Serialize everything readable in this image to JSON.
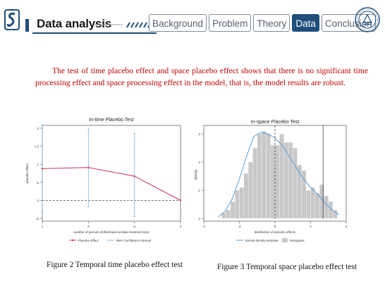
{
  "header": {
    "title": "Data analysis",
    "tabs": [
      {
        "label": "Background",
        "active": false
      },
      {
        "label": "Problem",
        "active": false
      },
      {
        "label": "Theory",
        "active": false
      },
      {
        "label": "Data",
        "active": true
      },
      {
        "label": "Conclusion",
        "active": false
      }
    ],
    "brand_color": "#1f4e79"
  },
  "body": {
    "text": "The test of time placebo effect and space placebo effect shows that there is no significant time processing effect and space processing effect in the model, that is, the model results are robust.",
    "text_color": "#c00000"
  },
  "figures": {
    "time": {
      "caption": "Figure 2 Temporal time placebo effect test"
    },
    "space": {
      "caption": "Figure 3 Temporal space placebo effect test"
    }
  },
  "chart_data": [
    {
      "type": "line",
      "title": "In-time Placebo Test",
      "xlabel": "number of periods shifted back as fake treatment time",
      "ylabel": "placebo effect",
      "x": [
        1,
        2,
        3,
        4
      ],
      "xlim": [
        1,
        4
      ],
      "ylim": [
        -0.5,
        2
      ],
      "x_ticks": [
        "1",
        "2",
        "3",
        "4"
      ],
      "y_ticks": [
        "-.5",
        "0",
        ".5",
        "1",
        "1.5",
        "2"
      ],
      "series": [
        {
          "name": "Placebo Effect",
          "values": [
            0.88,
            0.91,
            0.67,
            0.0
          ],
          "color": "#c8385a"
        }
      ],
      "confidence_intervals": {
        "name": "95% Confidence Interval",
        "color": "#7fb3d8",
        "lower": [
          -0.3,
          -0.18,
          -0.45,
          0.0
        ],
        "upper": [
          2.1,
          2.0,
          1.85,
          0.0
        ]
      },
      "reference_line": {
        "y": 0,
        "style": "dashed"
      },
      "legend": "bottom"
    },
    {
      "type": "histogram",
      "title": "In-space Placebo Test",
      "xlabel": "distribution of placebo effects",
      "ylabel": "density",
      "xlim": [
        -4,
        4
      ],
      "ylim": [
        0,
        0.32
      ],
      "x_ticks": [
        "-4",
        "-2",
        "0",
        "2",
        "4"
      ],
      "y_ticks": [
        "0",
        ".1",
        ".2",
        ".3"
      ],
      "bin_width": 0.25,
      "bin_starts": [
        -3.0,
        -2.75,
        -2.5,
        -2.25,
        -2.0,
        -1.75,
        -1.5,
        -1.25,
        -1.0,
        -0.75,
        -0.5,
        -0.25,
        0.0,
        0.25,
        0.5,
        0.75,
        1.0,
        1.25,
        1.5,
        1.75,
        2.0,
        2.25,
        2.5,
        2.75,
        3.0,
        3.25
      ],
      "densities": [
        0.02,
        0.03,
        0.06,
        0.1,
        0.11,
        0.16,
        0.2,
        0.25,
        0.3,
        0.31,
        0.3,
        0.26,
        0.26,
        0.3,
        0.27,
        0.27,
        0.25,
        0.19,
        0.17,
        0.1,
        0.11,
        0.09,
        0.12,
        0.08,
        0.06,
        0.03
      ],
      "kde_x": [
        -3.2,
        -2.8,
        -2.4,
        -2.0,
        -1.6,
        -1.2,
        -0.8,
        -0.4,
        0.0,
        0.4,
        0.8,
        1.2,
        1.6,
        2.0,
        2.4,
        2.8,
        3.2,
        3.6
      ],
      "kde_y": [
        0.005,
        0.025,
        0.07,
        0.14,
        0.22,
        0.29,
        0.305,
        0.3,
        0.285,
        0.26,
        0.22,
        0.18,
        0.14,
        0.11,
        0.085,
        0.055,
        0.03,
        0.012
      ],
      "vlines": [
        {
          "x": 0,
          "style": "dashed"
        },
        {
          "x": 2.7,
          "style": "solid"
        }
      ],
      "series": [
        {
          "name": "Kernel density estimate",
          "color": "#5b9bd5"
        },
        {
          "name": "Histogram",
          "color": "#c8c8c8"
        }
      ],
      "legend": "bottom"
    }
  ]
}
